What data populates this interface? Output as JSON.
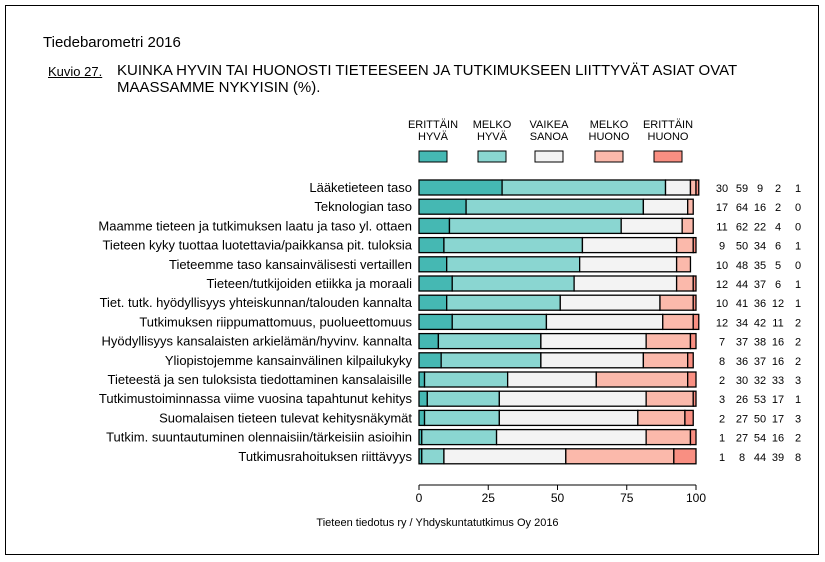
{
  "header": {
    "report_title": "Tiedebarometri 2016",
    "figure_number": "Kuvio 27.",
    "figure_title_line1": "KUINKA HYVIN TAI HUONOSTI TIETEESEEN JA TUTKIMUKSEEN LIITTYVÄT ASIAT OVAT",
    "figure_title_line2": "MAASSAMME NYKYISIN (%)."
  },
  "footer": {
    "source": "Tieteen tiedotus ry / Yhdyskuntatutkimus Oy 2016"
  },
  "chart_data": {
    "type": "bar",
    "orientation": "horizontal",
    "stacked": true,
    "title": "KUINKA HYVIN TAI HUONOSTI TIETEESEEN JA TUTKIMUKSEEN LIITTYVÄT ASIAT OVAT MAASSAMME NYKYISIN (%).",
    "xlabel": "",
    "ylabel": "",
    "xlim": [
      0,
      100
    ],
    "x_ticks": [
      "0",
      "25",
      "50",
      "75",
      "100"
    ],
    "x_tick_values": [
      0,
      25,
      50,
      75,
      100
    ],
    "legend_position": "top",
    "categories": [
      "Lääketieteen taso",
      "Teknologian taso",
      "Maamme tieteen ja tutkimuksen laatu ja taso yl. ottaen",
      "Tieteen kyky tuottaa luotettavia/paikkansa pit. tuloksia",
      "Tieteemme taso kansainvälisesti vertaillen",
      "Tieteen/tutkijoiden etiikka ja moraali",
      "Tiet. tutk. hyödyllisyys yhteiskunnan/talouden kannalta",
      "Tutkimuksen riippumattomuus, puolueettomuus",
      "Hyödyllisyys kansalaisten arkielämän/hyvinv. kannalta",
      "Yliopistojemme kansainvälinen kilpailukyky",
      "Tieteestä ja sen tuloksista tiedottaminen kansalaisille",
      "Tutkimustoiminnassa viime vuosina tapahtunut kehitys",
      "Suomalaisen tieteen tulevat kehitysnäkymät",
      "Tutkim. suuntautuminen olennaisiin/tärkeisiin asioihin",
      "Tutkimusrahoituksen riittävyys"
    ],
    "series": [
      {
        "name": "ERITTÄIN HYVÄ",
        "legend_lines": [
          "ERITTÄIN",
          "HYVÄ"
        ],
        "color": "#45b8b3",
        "values": [
          30,
          17,
          11,
          9,
          10,
          12,
          10,
          12,
          7,
          8,
          2,
          3,
          2,
          1,
          1
        ]
      },
      {
        "name": "MELKO HYVÄ",
        "legend_lines": [
          "MELKO",
          "HYVÄ"
        ],
        "color": "#8ad6d1",
        "values": [
          59,
          64,
          62,
          50,
          48,
          44,
          41,
          34,
          37,
          36,
          30,
          26,
          27,
          27,
          8
        ]
      },
      {
        "name": "VAIKEA SANOA",
        "legend_lines": [
          "VAIKEA",
          "SANOA"
        ],
        "color": "#f3f3f3",
        "values": [
          9,
          16,
          22,
          34,
          35,
          37,
          36,
          42,
          38,
          37,
          32,
          53,
          50,
          54,
          44
        ]
      },
      {
        "name": "MELKO HUONO",
        "legend_lines": [
          "MELKO",
          "HUONO"
        ],
        "color": "#fbb9ab",
        "values": [
          2,
          2,
          4,
          6,
          5,
          6,
          12,
          11,
          16,
          16,
          33,
          17,
          17,
          16,
          39
        ]
      },
      {
        "name": "ERITTÄIN HUONO",
        "legend_lines": [
          "ERITTÄIN",
          "HUONO"
        ],
        "color": "#f98f82",
        "values": [
          1,
          0,
          0,
          1,
          0,
          1,
          1,
          2,
          2,
          2,
          3,
          1,
          3,
          2,
          8
        ]
      }
    ]
  }
}
